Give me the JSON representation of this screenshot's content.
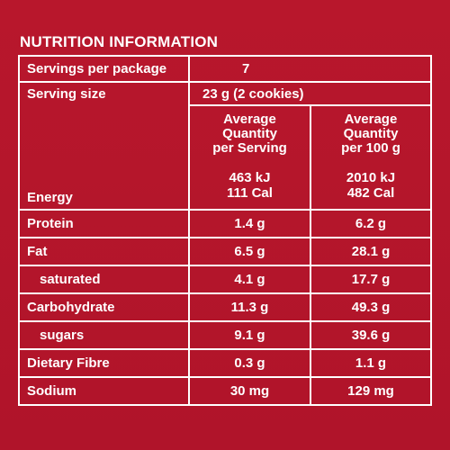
{
  "panel": {
    "title": "NUTRITION INFORMATION",
    "background_color": "#b5162a",
    "text_color": "#ffffff"
  },
  "servings_per_package": {
    "label": "Servings per package",
    "value": "7"
  },
  "serving_size": {
    "label": "Serving size",
    "value": "23 g (2 cookies)"
  },
  "columns": {
    "per_serving": [
      "Average",
      "Quantity",
      "per Serving"
    ],
    "per_100g": [
      "Average",
      "Quantity",
      "per 100 g"
    ]
  },
  "energy": {
    "label": "Energy",
    "per_serving": [
      "463 kJ",
      "111 Cal"
    ],
    "per_100g": [
      "2010 kJ",
      "482 Cal"
    ]
  },
  "rows": [
    {
      "label": "Protein",
      "per_serving": "1.4 g",
      "per_100g": "6.2 g",
      "sub": false
    },
    {
      "label": "Fat",
      "per_serving": "6.5 g",
      "per_100g": "28.1 g",
      "sub": false
    },
    {
      "label": "saturated",
      "per_serving": "4.1 g",
      "per_100g": "17.7 g",
      "sub": true
    },
    {
      "label": "Carbohydrate",
      "per_serving": "11.3 g",
      "per_100g": "49.3 g",
      "sub": false
    },
    {
      "label": "sugars",
      "per_serving": "9.1 g",
      "per_100g": "39.6 g",
      "sub": true
    },
    {
      "label": "Dietary Fibre",
      "per_serving": "0.3 g",
      "per_100g": "1.1 g",
      "sub": false
    },
    {
      "label": "Sodium",
      "per_serving": "30 mg",
      "per_100g": "129 mg",
      "sub": false
    }
  ]
}
